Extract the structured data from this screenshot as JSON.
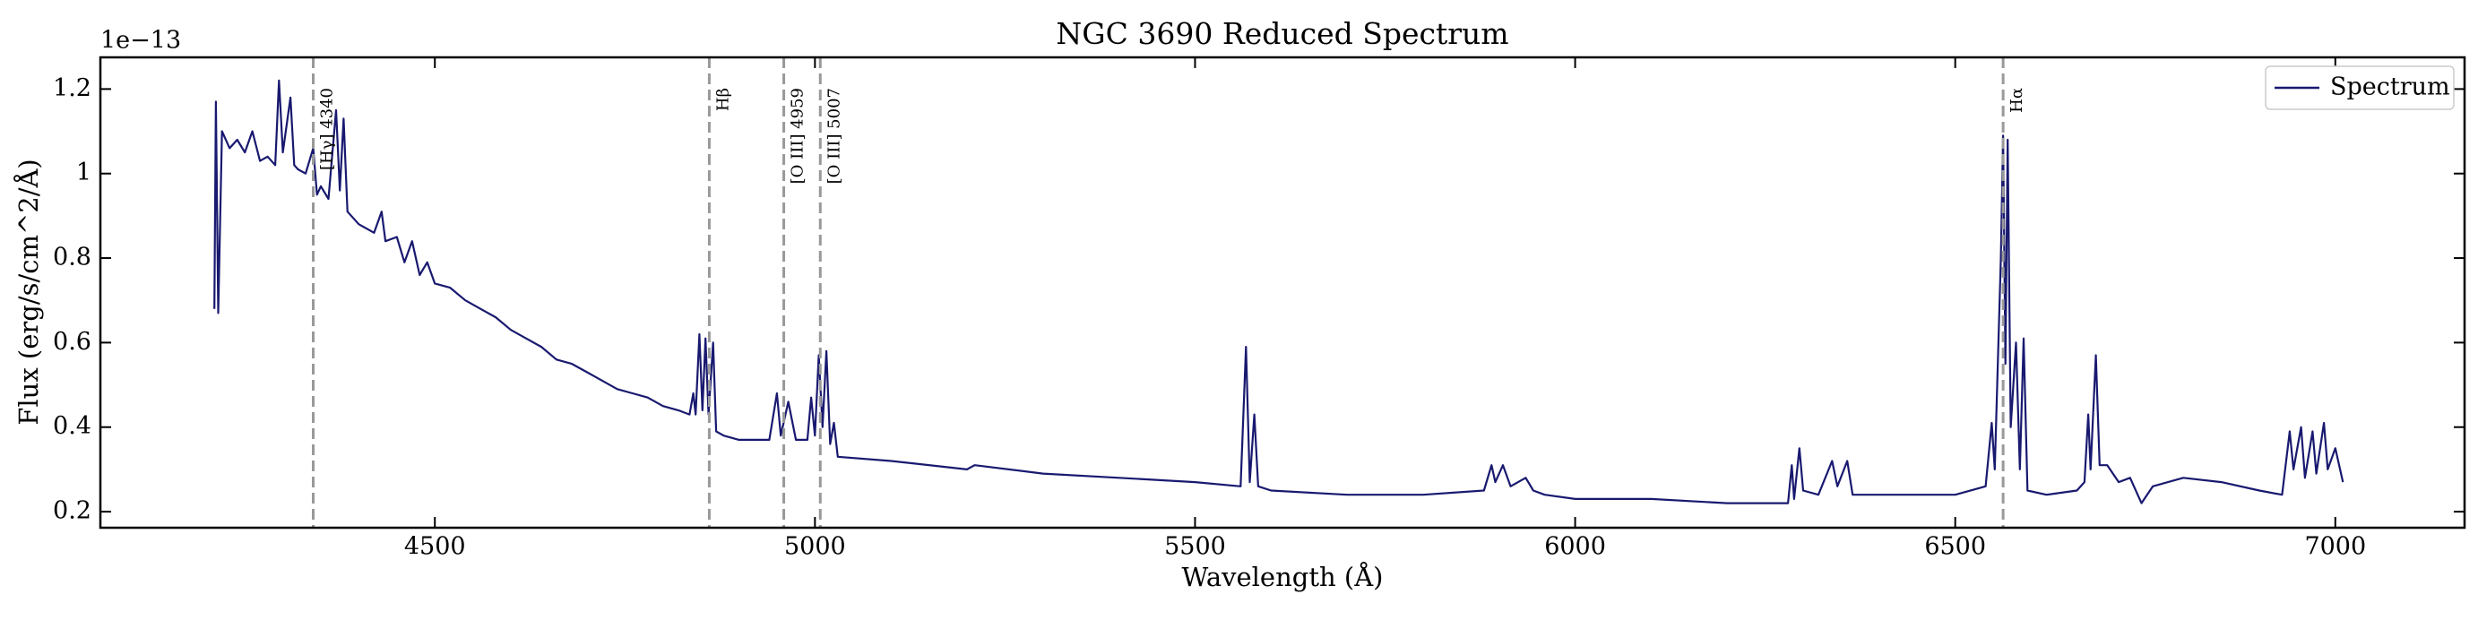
{
  "chart_data": {
    "type": "line",
    "title": "NGC 3690 Reduced Spectrum",
    "x_label": "Wavelength (Å)",
    "y_label": "Flux (erg/s/cm^2/Å)",
    "y_offset_label": "1e−13",
    "xlim": [
      4060,
      7170
    ],
    "xticks": [
      4500,
      5000,
      5500,
      6000,
      6500,
      7000
    ],
    "ylim": [
      0.162,
      1.275
    ],
    "yticks": [
      0.2,
      0.4,
      0.6,
      0.8,
      1.0,
      1.2
    ],
    "legend": "upper right",
    "x": [
      4210,
      4212,
      4215,
      4220,
      4230,
      4240,
      4250,
      4260,
      4270,
      4280,
      4290,
      4295,
      4300,
      4310,
      4315,
      4320,
      4330,
      4340,
      4345,
      4350,
      4360,
      4370,
      4375,
      4380,
      4385,
      4400,
      4420,
      4430,
      4435,
      4450,
      4460,
      4470,
      4480,
      4490,
      4500,
      4520,
      4540,
      4560,
      4580,
      4600,
      4620,
      4640,
      4660,
      4680,
      4700,
      4720,
      4740,
      4760,
      4780,
      4800,
      4820,
      4835,
      4840,
      4843,
      4848,
      4852,
      4856,
      4860,
      4866,
      4870,
      4880,
      4900,
      4920,
      4940,
      4950,
      4955,
      4965,
      4975,
      4990,
      4995,
      5000,
      5005,
      5010,
      5015,
      5020,
      5025,
      5030,
      5100,
      5200,
      5210,
      5300,
      5400,
      5500,
      5560,
      5567,
      5572,
      5578,
      5583,
      5600,
      5700,
      5800,
      5880,
      5890,
      5895,
      5905,
      5915,
      5935,
      5945,
      5960,
      6000,
      6100,
      6200,
      6280,
      6285,
      6288,
      6295,
      6300,
      6320,
      6338,
      6345,
      6358,
      6365,
      6400,
      6500,
      6540,
      6548,
      6552,
      6560,
      6563,
      6566,
      6569,
      6573,
      6580,
      6585,
      6590,
      6595,
      6620,
      6660,
      6670,
      6675,
      6678,
      6685,
      6690,
      6700,
      6715,
      6730,
      6745,
      6760,
      6800,
      6850,
      6900,
      6930,
      6940,
      6945,
      6955,
      6960,
      6970,
      6975,
      6985,
      6990,
      7000,
      7010
    ],
    "series": [
      {
        "name": "Spectrum",
        "color": "#191970",
        "values": [
          0.68,
          1.17,
          0.67,
          1.1,
          1.06,
          1.08,
          1.05,
          1.1,
          1.03,
          1.04,
          1.02,
          1.22,
          1.05,
          1.18,
          1.02,
          1.01,
          1.0,
          1.06,
          0.95,
          0.97,
          0.94,
          1.15,
          0.96,
          1.13,
          0.91,
          0.88,
          0.86,
          0.91,
          0.84,
          0.85,
          0.79,
          0.84,
          0.76,
          0.79,
          0.74,
          0.73,
          0.7,
          0.68,
          0.66,
          0.63,
          0.61,
          0.59,
          0.56,
          0.55,
          0.53,
          0.51,
          0.49,
          0.48,
          0.47,
          0.45,
          0.44,
          0.43,
          0.48,
          0.43,
          0.62,
          0.44,
          0.61,
          0.43,
          0.6,
          0.39,
          0.38,
          0.37,
          0.37,
          0.37,
          0.48,
          0.38,
          0.46,
          0.37,
          0.37,
          0.47,
          0.38,
          0.57,
          0.4,
          0.58,
          0.36,
          0.41,
          0.33,
          0.32,
          0.3,
          0.31,
          0.29,
          0.28,
          0.27,
          0.26,
          0.59,
          0.27,
          0.43,
          0.26,
          0.25,
          0.24,
          0.24,
          0.25,
          0.31,
          0.27,
          0.31,
          0.26,
          0.28,
          0.25,
          0.24,
          0.23,
          0.23,
          0.22,
          0.22,
          0.31,
          0.23,
          0.35,
          0.25,
          0.24,
          0.32,
          0.26,
          0.32,
          0.24,
          0.24,
          0.24,
          0.26,
          0.41,
          0.3,
          0.8,
          1.09,
          0.55,
          1.08,
          0.4,
          0.6,
          0.3,
          0.61,
          0.25,
          0.24,
          0.25,
          0.27,
          0.43,
          0.3,
          0.57,
          0.31,
          0.31,
          0.27,
          0.28,
          0.22,
          0.26,
          0.28,
          0.27,
          0.25,
          0.24,
          0.39,
          0.3,
          0.4,
          0.28,
          0.39,
          0.29,
          0.41,
          0.3,
          0.35,
          0.27
        ]
      }
    ],
    "vlines": [
      {
        "x": 4340,
        "label": "[Hγ] 4340"
      },
      {
        "x": 4861,
        "label": "Hβ"
      },
      {
        "x": 4959,
        "label": "[O III] 4959"
      },
      {
        "x": 5007,
        "label": "[O III] 5007"
      },
      {
        "x": 6563,
        "label": "Hα"
      }
    ]
  }
}
